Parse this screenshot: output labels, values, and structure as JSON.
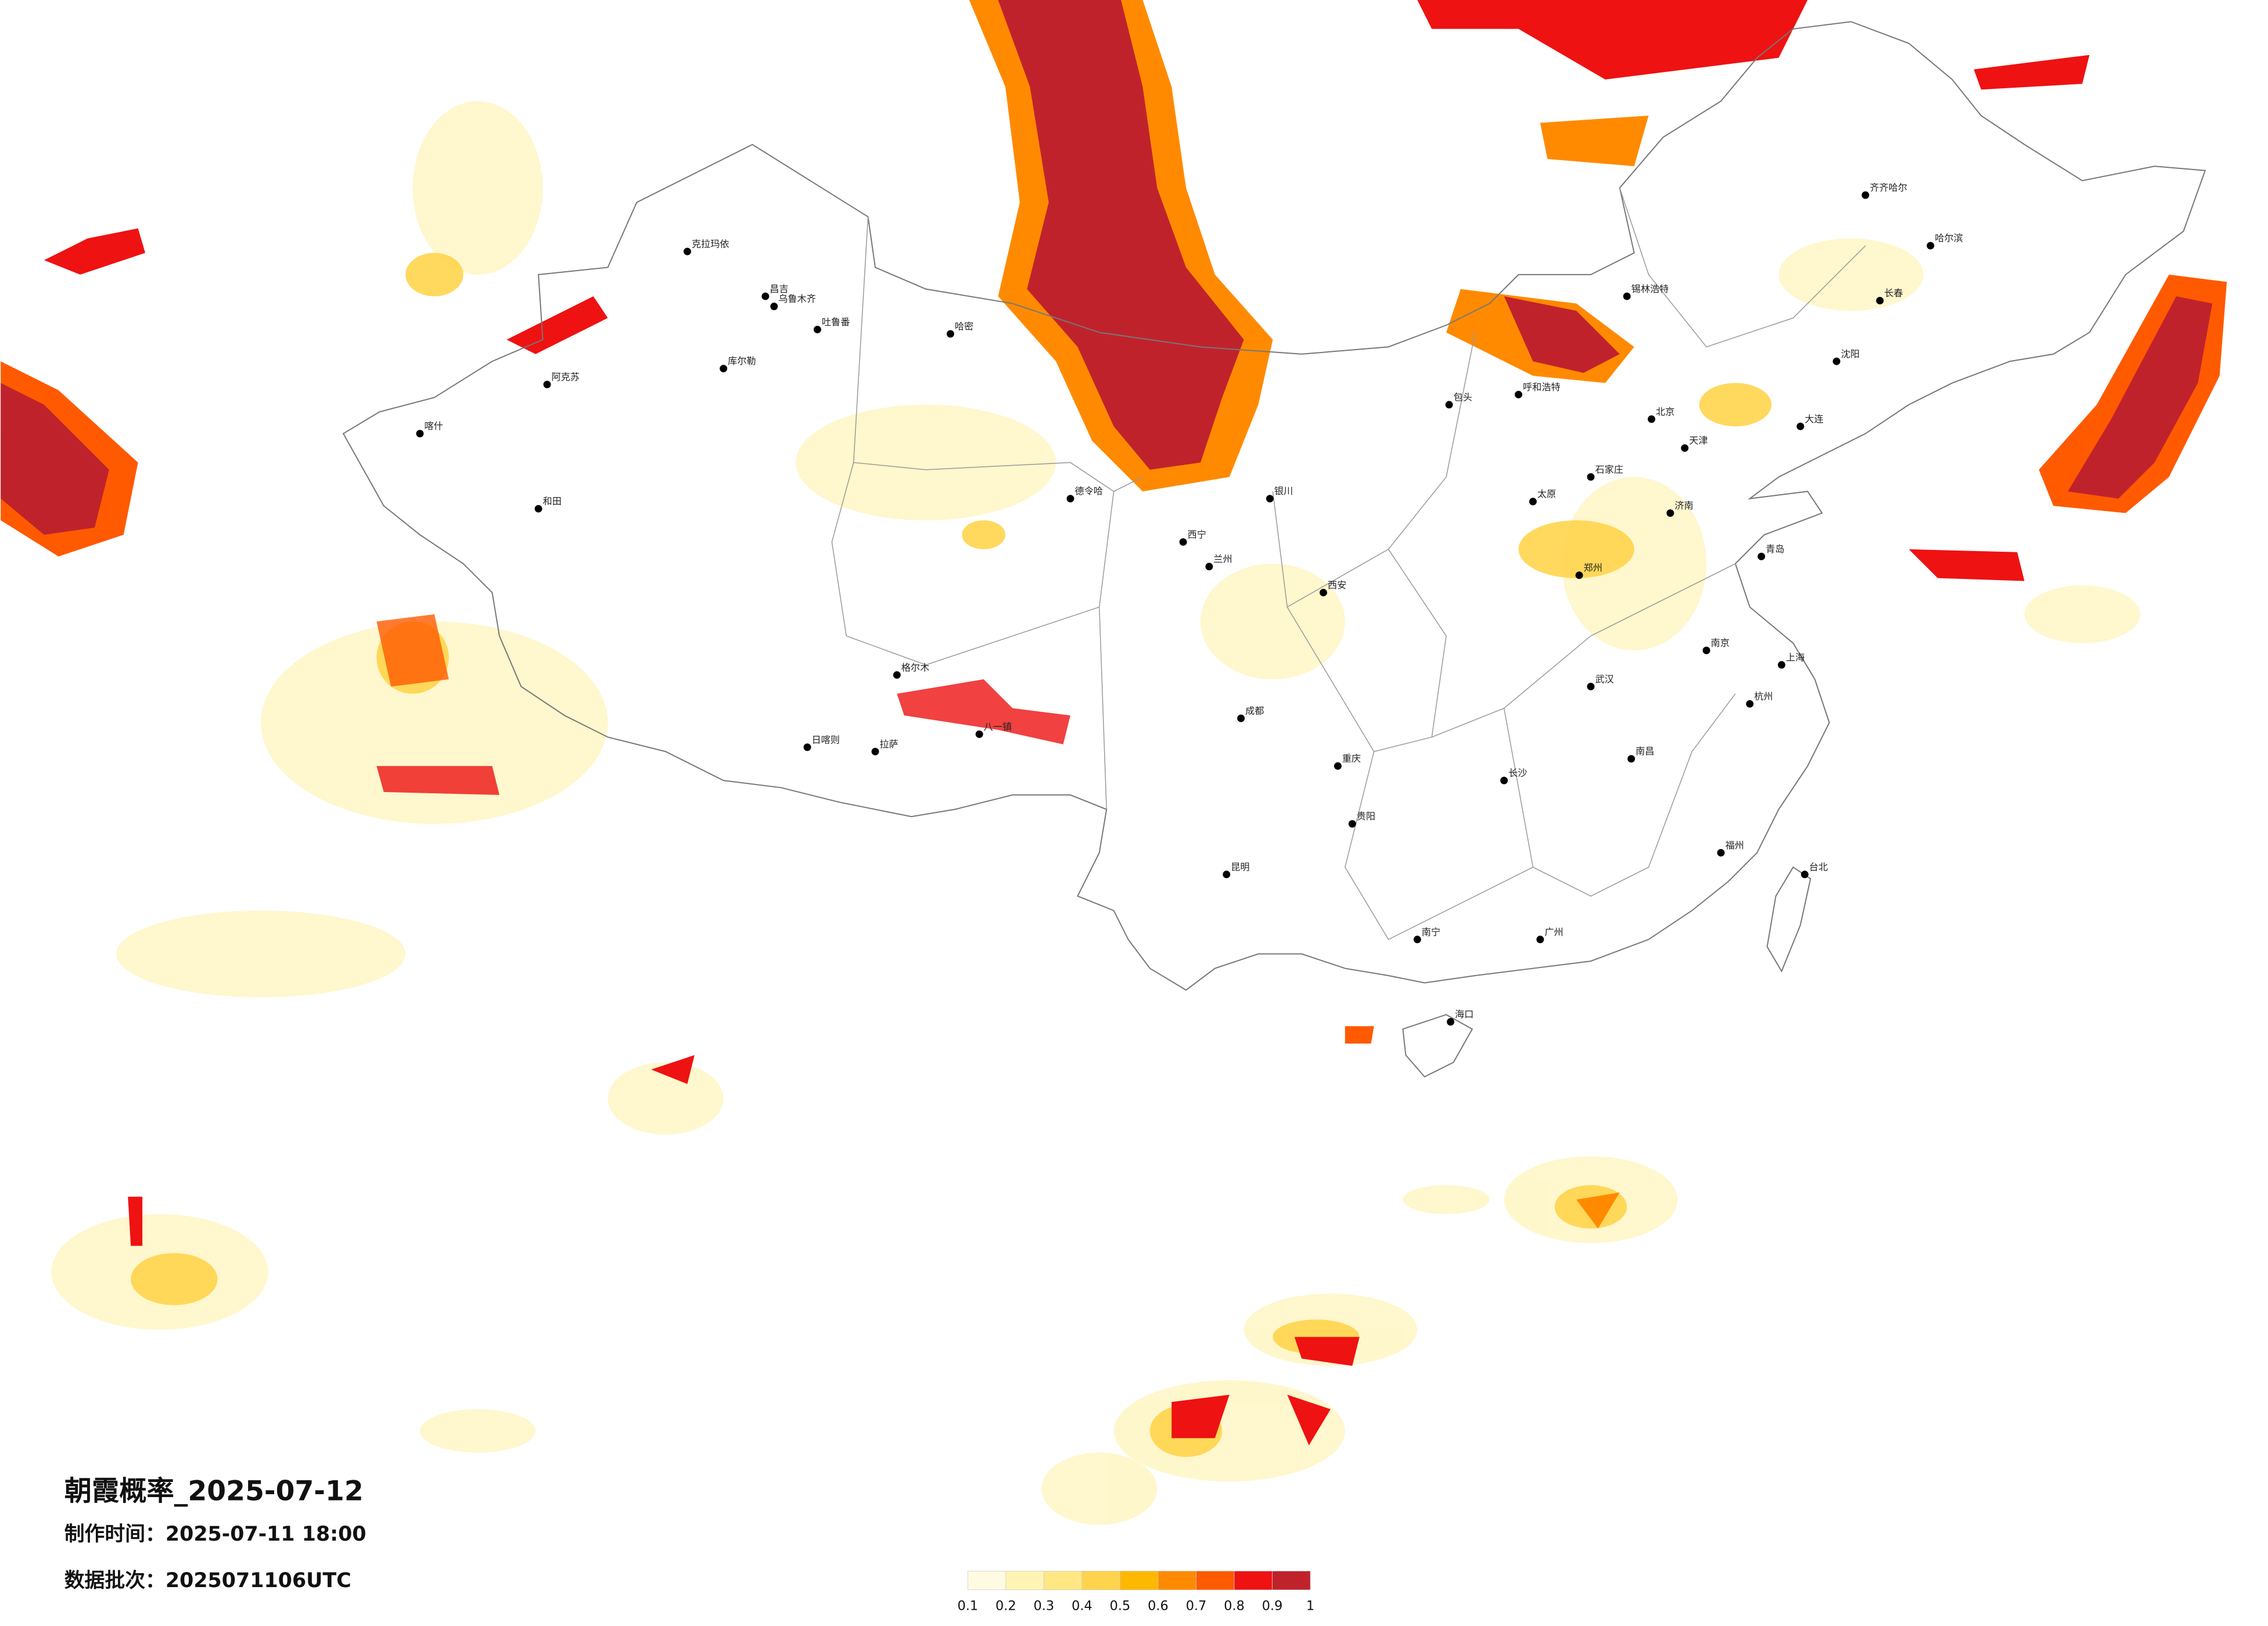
{
  "header": {
    "title": "朝霞概率_2025-07-12",
    "made_time": "制作时间：2025-07-11 18:00",
    "batch": "数据批次：2025071106UTC"
  },
  "legend": {
    "colors": [
      "#fffbe2",
      "#fff4b4",
      "#ffe784",
      "#ffd44c",
      "#ffb800",
      "#ff8a00",
      "#ff5a00",
      "#ee1212",
      "#c0222c"
    ],
    "labels": [
      0.1,
      0.2,
      0.3,
      0.4,
      0.5,
      0.6,
      0.7,
      0.8,
      0.9,
      1
    ]
  },
  "cities": [
    "克拉玛依",
    "昌吉",
    "乌鲁木齐",
    "吐鲁番",
    "库尔勒",
    "阿克苏",
    "喀什",
    "和田",
    "哈密",
    "格尔木",
    "拉萨",
    "日喀则",
    "八一镇",
    "德令哈",
    "西宁",
    "兰州",
    "银川",
    "呼和浩特",
    "北京",
    "天津",
    "石家庄",
    "太原",
    "郑州",
    "西安",
    "成都",
    "重庆",
    "贵阳",
    "昆明",
    "南宁",
    "广州",
    "长沙",
    "武汉",
    "南昌",
    "上海",
    "南京",
    "杭州",
    "福州",
    "台北",
    "海口",
    "沈阳",
    "长春",
    "哈尔滨",
    "齐齐哈尔",
    "济南",
    "青岛",
    "锡林浩特",
    "包头",
    "大连"
  ]
}
